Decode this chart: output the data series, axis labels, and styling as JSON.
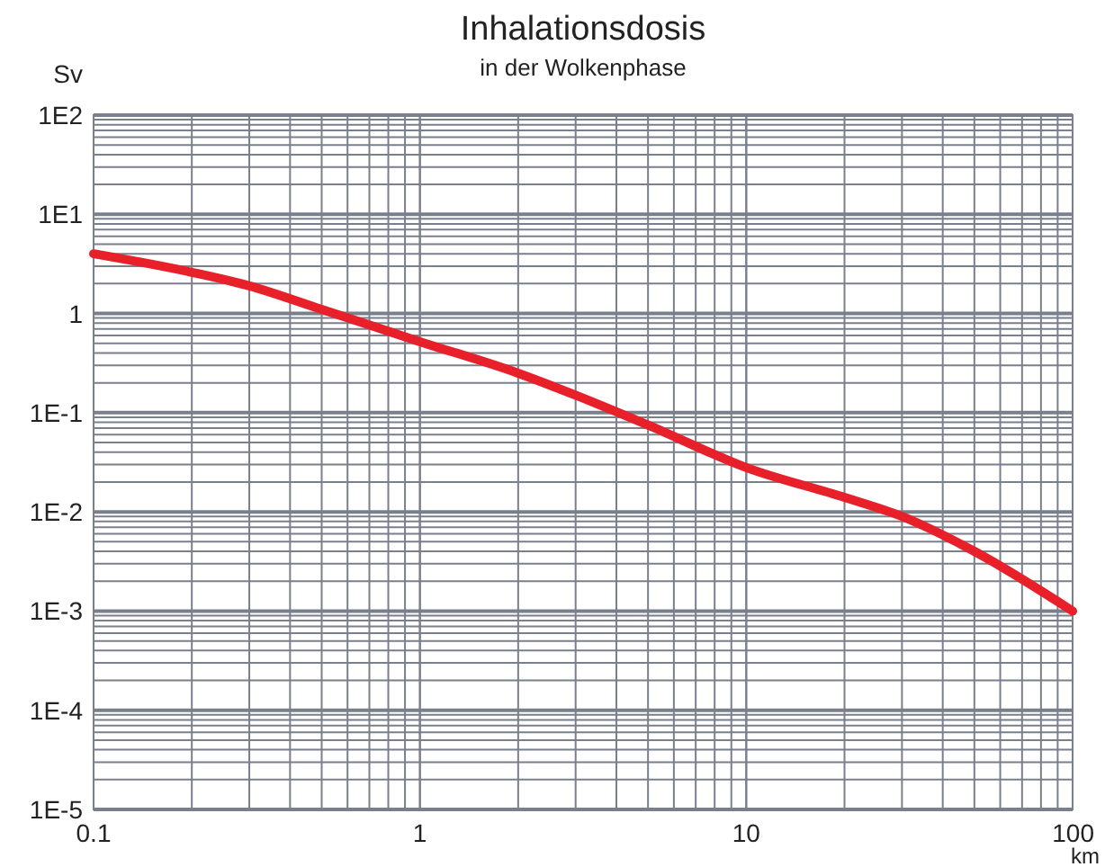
{
  "chart_data": {
    "type": "line",
    "title": "Inhalationsdosis",
    "subtitle": "in der Wolkenphase",
    "xlabel": "km",
    "ylabel": "Sv",
    "log": "xy",
    "grid": true,
    "xlim": [
      0.1,
      100
    ],
    "xticks": [
      0.1,
      1,
      10,
      100
    ],
    "ylim": [
      1e-05,
      100
    ],
    "yticks": [
      {
        "value": 100,
        "label": "1E2"
      },
      {
        "value": 10,
        "label": "1E1"
      },
      {
        "value": 1,
        "label": "1"
      },
      {
        "value": 0.1,
        "label": "1E-1"
      },
      {
        "value": 0.01,
        "label": "1E-2"
      },
      {
        "value": 0.001,
        "label": "1E-3"
      },
      {
        "value": 0.0001,
        "label": "1E-4"
      },
      {
        "value": 1e-05,
        "label": "1E-5"
      }
    ],
    "series": [
      {
        "color": "#e8202a",
        "x": [
          0.1,
          0.2,
          0.3,
          0.5,
          1,
          2,
          3,
          5,
          10,
          20,
          30,
          50,
          100
        ],
        "values": [
          4,
          2.6,
          1.9,
          1.1,
          0.52,
          0.25,
          0.15,
          0.075,
          0.028,
          0.014,
          0.009,
          0.004,
          0.001
        ]
      }
    ]
  }
}
